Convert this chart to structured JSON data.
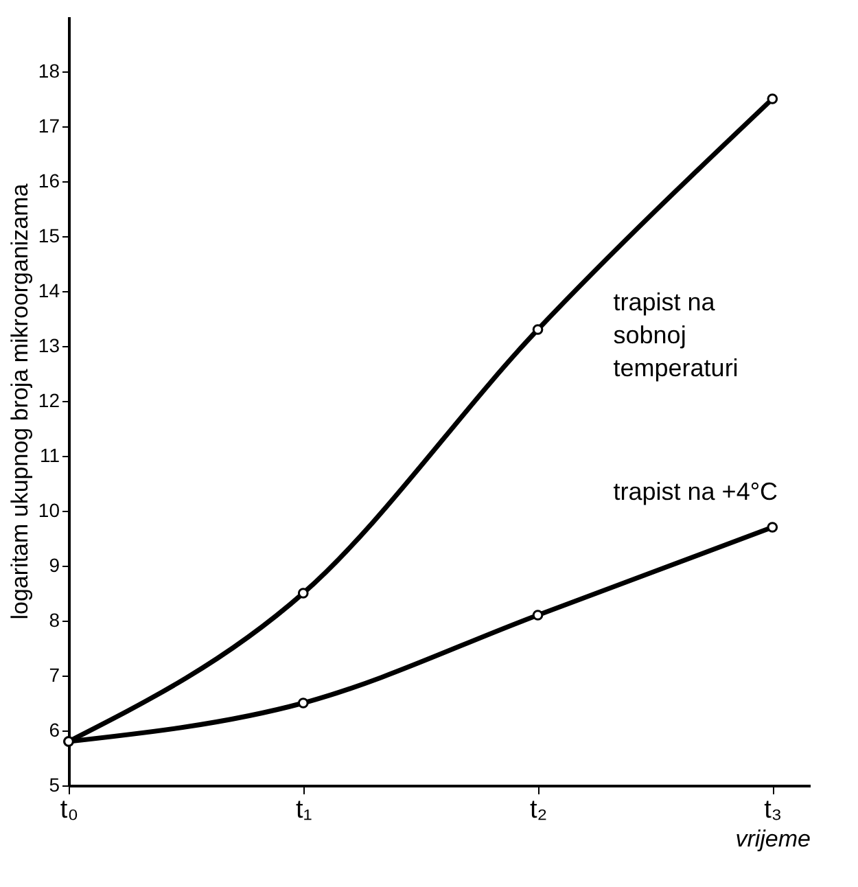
{
  "chart_data": {
    "type": "line",
    "xlabel": "vrijeme",
    "ylabel": "logaritam ukupnog broja mikroorganizama",
    "categories": [
      "t₀",
      "t₁",
      "t₂",
      "t₃"
    ],
    "ylim": [
      5,
      19
    ],
    "yticks": [
      5,
      6,
      7,
      8,
      9,
      10,
      11,
      12,
      13,
      14,
      15,
      16,
      17,
      18
    ],
    "series": [
      {
        "name": "trapist na sobnoj temperaturi",
        "color": "#000000",
        "values": [
          5.8,
          8.5,
          13.3,
          17.5
        ]
      },
      {
        "name": "trapist na +4°C",
        "color": "#000000",
        "values": [
          5.8,
          6.5,
          8.1,
          9.7
        ]
      }
    ],
    "marker": "circle",
    "line_style": "solid",
    "grid": false
  }
}
